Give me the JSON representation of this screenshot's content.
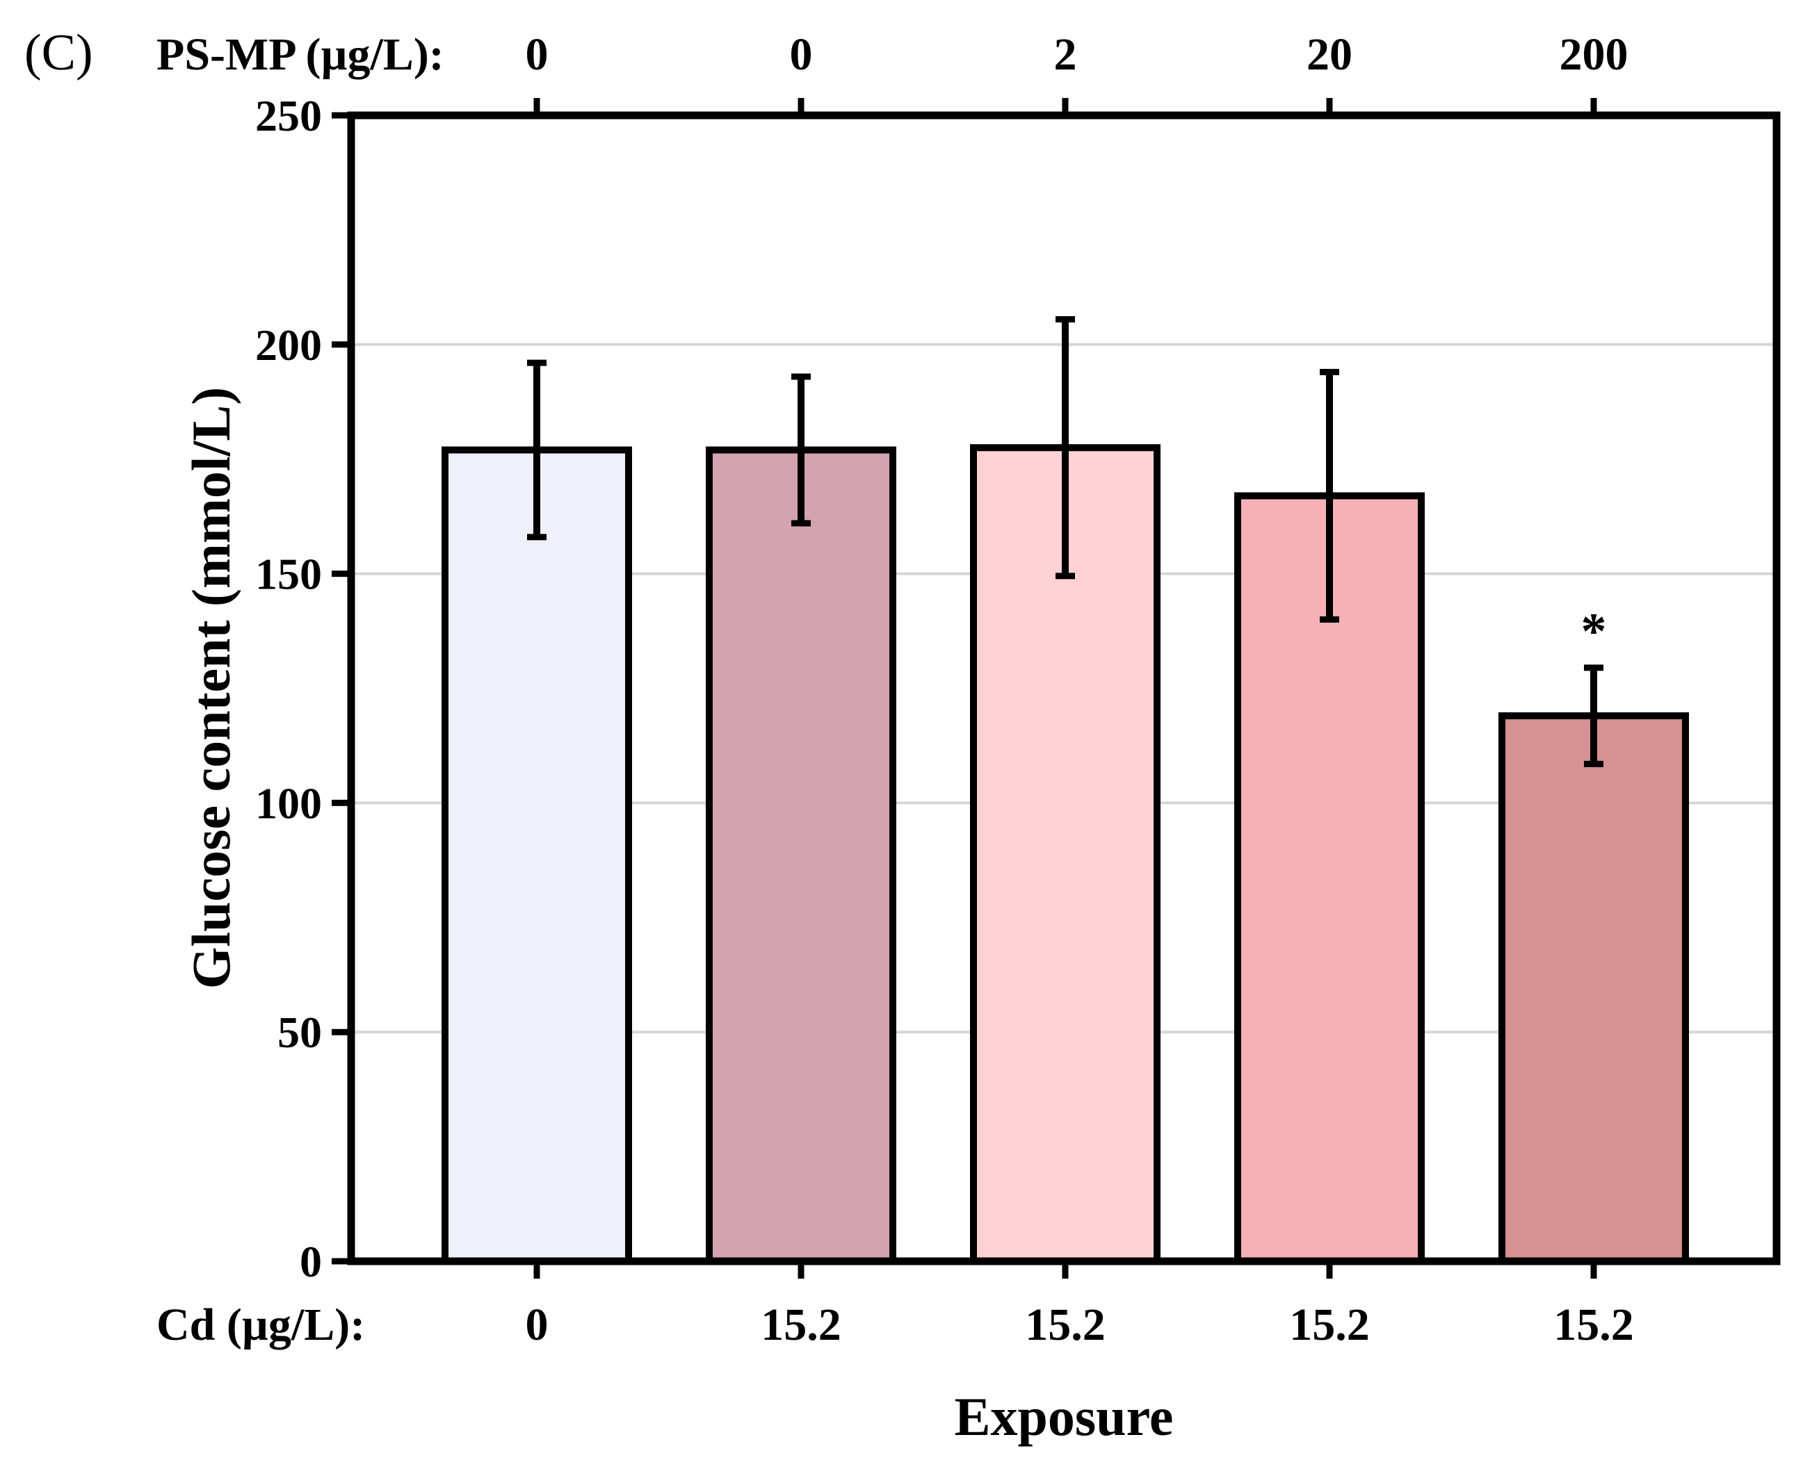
{
  "panel_label": "(C)",
  "chart_data": {
    "type": "bar",
    "xlabel": "Exposure",
    "ylabel": "Glucose content (mmol/L)",
    "ylim": [
      0,
      250
    ],
    "yticks": [
      0,
      50,
      100,
      150,
      200,
      250
    ],
    "grid": true,
    "top_axis": {
      "label": "PS-MP (µg/L):",
      "values": [
        "0",
        "0",
        "2",
        "20",
        "200"
      ]
    },
    "bottom_axis": {
      "label": "Cd (µg/L):",
      "values": [
        "0",
        "15.2",
        "15.2",
        "15.2",
        "15.2"
      ]
    },
    "values": [
      177,
      177,
      177.5,
      167,
      119
    ],
    "errors": [
      19,
      16,
      28,
      27,
      10.5
    ],
    "colors": [
      "#f0f0fa",
      "#d3a3b2",
      "#ffd2d5",
      "#f5b1b6",
      "#d49293"
    ],
    "annotations": [
      "",
      "",
      "",
      "",
      "*"
    ]
  }
}
